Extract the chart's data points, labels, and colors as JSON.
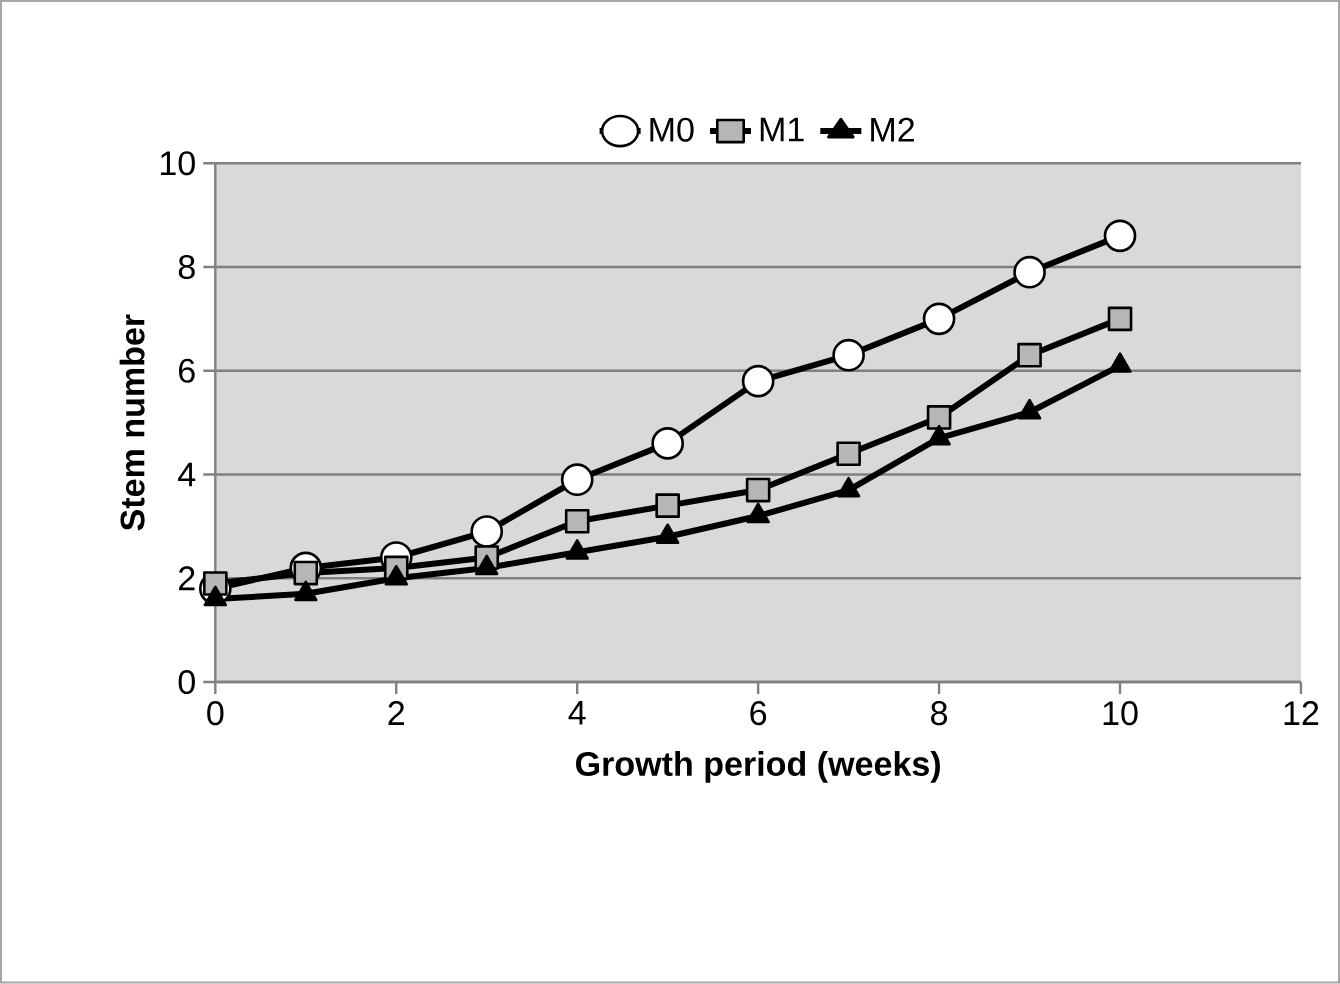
{
  "chart_data": {
    "type": "line",
    "xlabel": "Growth period (weeks)",
    "ylabel": "Stem number",
    "x": [
      0,
      1,
      2,
      3,
      4,
      5,
      6,
      7,
      8,
      9,
      10
    ],
    "xlim": [
      0,
      12
    ],
    "xticks": [
      0,
      2,
      4,
      6,
      8,
      10,
      12
    ],
    "ylim": [
      0,
      10
    ],
    "yticks": [
      0,
      2,
      4,
      6,
      8,
      10
    ],
    "grid": "y",
    "legend": "top",
    "line_style": "solid",
    "series": [
      {
        "name": "M0",
        "color": "#000000",
        "marker": "circle",
        "values": [
          1.8,
          2.2,
          2.4,
          2.9,
          3.9,
          4.6,
          5.8,
          6.3,
          7.0,
          7.9,
          8.6
        ]
      },
      {
        "name": "M1",
        "color": "#000000",
        "marker": "square",
        "values": [
          1.9,
          2.1,
          2.2,
          2.4,
          3.1,
          3.4,
          3.7,
          4.4,
          5.1,
          6.3,
          7.0
        ]
      },
      {
        "name": "M2",
        "color": "#000000",
        "marker": "triangle",
        "values": [
          1.6,
          1.7,
          2.0,
          2.2,
          2.5,
          2.8,
          3.2,
          3.7,
          4.7,
          5.2,
          6.1
        ]
      }
    ]
  }
}
